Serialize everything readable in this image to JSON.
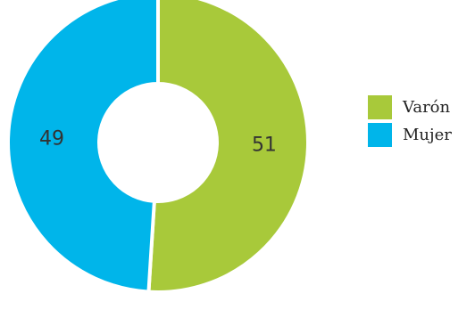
{
  "chart_data": {
    "type": "pie",
    "donut": true,
    "categories": [
      "Varón",
      "Mujer"
    ],
    "values": [
      51,
      49
    ],
    "colors": [
      "#a8c93a",
      "#00b5ea"
    ],
    "data_labels": [
      "51",
      "49"
    ],
    "legend_position": "right"
  }
}
